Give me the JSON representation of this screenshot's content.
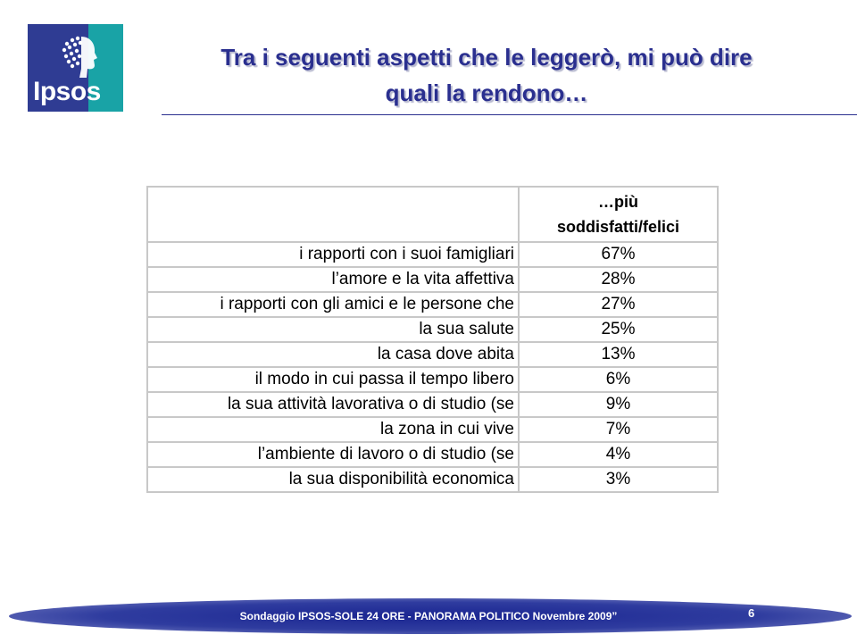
{
  "logo": {
    "text": "Ipsos"
  },
  "title": {
    "line1": "Tra i seguenti aspetti che le leggerò, mi può dire",
    "line2": "quali la rendono…"
  },
  "table": {
    "header_line1": "…più",
    "header_line2": "soddisfatti/felici",
    "rows": [
      {
        "label": "i rapporti con i suoi famigliari",
        "value": "67%"
      },
      {
        "label": "l’amore e la vita affettiva",
        "value": "28%"
      },
      {
        "label": "i rapporti con gli amici e le persone che",
        "value": "27%"
      },
      {
        "label": "la sua salute",
        "value": "25%"
      },
      {
        "label": "la casa dove abita",
        "value": "13%"
      },
      {
        "label": "il modo in cui passa il tempo libero",
        "value": "6%"
      },
      {
        "label": "la sua attività lavorativa o di studio (se",
        "value": "9%"
      },
      {
        "label": "la zona in cui vive",
        "value": "7%"
      },
      {
        "label": "l’ambiente di lavoro o di studio (se",
        "value": "4%"
      },
      {
        "label": "la sua disponibilità economica",
        "value": "3%"
      }
    ]
  },
  "footer": {
    "text": "Sondaggio IPSOS-SOLE 24 ORE - PANORAMA POLITICO Novembre 2009”",
    "page": "6"
  },
  "colors": {
    "title": "#2a2f8f",
    "logo_blue": "#2f3c93",
    "logo_teal": "#19a3a6",
    "footer": "#1a2591",
    "grid": "#c8c8c8"
  }
}
